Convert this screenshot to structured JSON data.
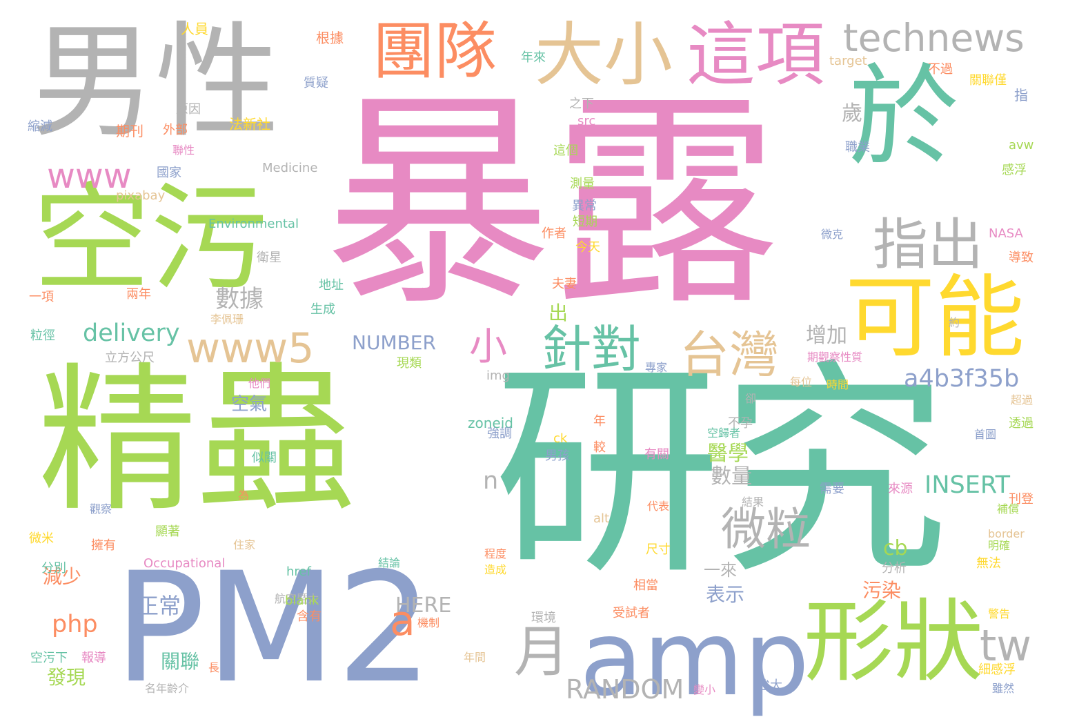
{
  "palette": {
    "teal": "#66c2a5",
    "orange": "#fc8d62",
    "blue": "#8da0cb",
    "pink": "#e78ac3",
    "lime": "#a6d854",
    "yellow": "#ffd92f",
    "tan": "#e5c494",
    "gray": "#b3b3b3"
  },
  "words": [
    {
      "text": "暴露",
      "color": "#e78ac3"
    },
    {
      "text": "研究",
      "color": "#66c2a5"
    },
    {
      "text": "精蟲",
      "color": "#a6d854"
    },
    {
      "text": "PM2",
      "color": "#8da0cb"
    },
    {
      "text": "男性",
      "color": "#b3b3b3"
    },
    {
      "text": "於",
      "color": "#66c2a5"
    },
    {
      "text": "空污",
      "color": "#a6d854"
    },
    {
      "text": "amp",
      "color": "#8da0cb"
    },
    {
      "text": "形狀",
      "color": "#a6d854"
    },
    {
      "text": "可能",
      "color": "#ffd92f"
    },
    {
      "text": "大小",
      "color": "#e5c494"
    },
    {
      "text": "這項",
      "color": "#e78ac3"
    },
    {
      "text": "團隊",
      "color": "#fc8d62"
    },
    {
      "text": "technews",
      "color": "#b3b3b3"
    },
    {
      "text": "指出",
      "color": "#b3b3b3"
    },
    {
      "text": "針對",
      "color": "#66c2a5"
    },
    {
      "text": "台灣",
      "color": "#e5c494"
    },
    {
      "text": "www5",
      "color": "#e5c494"
    },
    {
      "text": "微粒",
      "color": "#b3b3b3"
    },
    {
      "text": "月",
      "color": "#b3b3b3"
    },
    {
      "text": "www",
      "color": "#e78ac3"
    },
    {
      "text": "小",
      "color": "#e78ac3"
    },
    {
      "text": "tw",
      "color": "#b3b3b3"
    },
    {
      "text": "a",
      "color": "#fc8d62"
    },
    {
      "text": "delivery",
      "color": "#66c2a5"
    },
    {
      "text": "數據",
      "color": "#b3b3b3"
    },
    {
      "text": "a4b3f35b",
      "color": "#8da0cb"
    },
    {
      "text": "增加",
      "color": "#b3b3b3"
    },
    {
      "text": "INSERT",
      "color": "#66c2a5"
    },
    {
      "text": "RANDOM",
      "color": "#b3b3b3"
    },
    {
      "text": "NUMBER",
      "color": "#8da0cb"
    },
    {
      "text": "HERE",
      "color": "#b3b3b3"
    },
    {
      "text": "php",
      "color": "#fc8d62"
    },
    {
      "text": "空氣",
      "color": "#8da0cb"
    },
    {
      "text": "醫學",
      "color": "#a6d854"
    },
    {
      "text": "數量",
      "color": "#b3b3b3"
    },
    {
      "text": "cb",
      "color": "#a6d854"
    },
    {
      "text": "正常",
      "color": "#8da0cb"
    },
    {
      "text": "減少",
      "color": "#fc8d62"
    },
    {
      "text": "關聯",
      "color": "#66c2a5"
    },
    {
      "text": "發現",
      "color": "#a6d854"
    },
    {
      "text": "表示",
      "color": "#8da0cb"
    },
    {
      "text": "污染",
      "color": "#fc8d62"
    },
    {
      "text": "n",
      "color": "#b3b3b3"
    },
    {
      "text": "歲",
      "color": "#b3b3b3"
    },
    {
      "text": "出",
      "color": "#a6d854"
    },
    {
      "text": "一來",
      "color": "#b3b3b3"
    },
    {
      "text": "人員",
      "color": "#ffd92f"
    },
    {
      "text": "根據",
      "color": "#fc8d62"
    },
    {
      "text": "質疑",
      "color": "#8da0cb"
    },
    {
      "text": "縮減",
      "color": "#8da0cb"
    },
    {
      "text": "原因",
      "color": "#b3b3b3"
    },
    {
      "text": "期刊",
      "color": "#fc8d62"
    },
    {
      "text": "外部",
      "color": "#fc8d62"
    },
    {
      "text": "法新社",
      "color": "#ffd92f"
    },
    {
      "text": "聯性",
      "color": "#e78ac3"
    },
    {
      "text": "國家",
      "color": "#8da0cb"
    },
    {
      "text": "Medicine",
      "color": "#b3b3b3"
    },
    {
      "text": "pixabay",
      "color": "#e5c494"
    },
    {
      "text": "Environmental",
      "color": "#66c2a5"
    },
    {
      "text": "衛星",
      "color": "#b3b3b3"
    },
    {
      "text": "一項",
      "color": "#fc8d62"
    },
    {
      "text": "兩年",
      "color": "#fc8d62"
    },
    {
      "text": "地址",
      "color": "#66c2a5"
    },
    {
      "text": "生成",
      "color": "#66c2a5"
    },
    {
      "text": "李佩珊",
      "color": "#e5c494"
    },
    {
      "text": "粒徑",
      "color": "#66c2a5"
    },
    {
      "text": "立方公尺",
      "color": "#b3b3b3"
    },
    {
      "text": "年來",
      "color": "#66c2a5"
    },
    {
      "text": "target",
      "color": "#e5c494"
    },
    {
      "text": "不過",
      "color": "#fc8d62"
    },
    {
      "text": "關聯僅",
      "color": "#ffd92f"
    },
    {
      "text": "之下",
      "color": "#b3b3b3"
    },
    {
      "text": "src",
      "color": "#e78ac3"
    },
    {
      "text": "這個",
      "color": "#a6d854"
    },
    {
      "text": "測量",
      "color": "#a6d854"
    },
    {
      "text": "異常",
      "color": "#8da0cb"
    },
    {
      "text": "短期",
      "color": "#a6d854"
    },
    {
      "text": "作者",
      "color": "#fc8d62"
    },
    {
      "text": "今天",
      "color": "#ffd92f"
    },
    {
      "text": "夫妻",
      "color": "#fc8d62"
    },
    {
      "text": "指",
      "color": "#8da0cb"
    },
    {
      "text": "職業",
      "color": "#8da0cb"
    },
    {
      "text": "avw",
      "color": "#a6d854"
    },
    {
      "text": "感浮",
      "color": "#a6d854"
    },
    {
      "text": "NASA",
      "color": "#e78ac3"
    },
    {
      "text": "導致",
      "color": "#fc8d62"
    },
    {
      "text": "微克",
      "color": "#8da0cb"
    },
    {
      "text": "約",
      "color": "#b3b3b3"
    },
    {
      "text": "期觀察性質",
      "color": "#e78ac3"
    },
    {
      "text": "專家",
      "color": "#8da0cb"
    },
    {
      "text": "每位",
      "color": "#e5c494"
    },
    {
      "text": "時間",
      "color": "#ffd92f"
    },
    {
      "text": "超過",
      "color": "#e5c494"
    },
    {
      "text": "透過",
      "color": "#a6d854"
    },
    {
      "text": "首圖",
      "color": "#8da0cb"
    },
    {
      "text": "img",
      "color": "#b3b3b3"
    },
    {
      "text": "卻",
      "color": "#b3b3b3"
    },
    {
      "text": "zoneid",
      "color": "#66c2a5"
    },
    {
      "text": "強調",
      "color": "#8da0cb"
    },
    {
      "text": "不孕",
      "color": "#b3b3b3"
    },
    {
      "text": "空污下",
      "color": "#66c2a5"
    },
    {
      "text": "他們",
      "color": "#e78ac3"
    },
    {
      "text": "現類",
      "color": "#a6d854"
    },
    {
      "text": "年",
      "color": "#fc8d62"
    },
    {
      "text": "ck",
      "color": "#ffd92f"
    },
    {
      "text": "男孩",
      "color": "#8da0cb"
    },
    {
      "text": "較",
      "color": "#fc8d62"
    },
    {
      "text": "有關",
      "color": "#e78ac3"
    },
    {
      "text": "空歸者",
      "color": "#66c2a5"
    },
    {
      "text": "似關",
      "color": "#66c2a5"
    },
    {
      "text": "為",
      "color": "#fc8d62"
    },
    {
      "text": "觀察",
      "color": "#8da0cb"
    },
    {
      "text": "需要",
      "color": "#8da0cb"
    },
    {
      "text": "來源",
      "color": "#e78ac3"
    },
    {
      "text": "刊登",
      "color": "#fc8d62"
    },
    {
      "text": "結果",
      "color": "#b3b3b3"
    },
    {
      "text": "補償",
      "color": "#a6d854"
    },
    {
      "text": "alt",
      "color": "#e5c494"
    },
    {
      "text": "代表",
      "color": "#fc8d62"
    },
    {
      "text": "住家",
      "color": "#e5c494"
    },
    {
      "text": "顯著",
      "color": "#a6d854"
    },
    {
      "text": "微米",
      "color": "#ffd92f"
    },
    {
      "text": "擁有",
      "color": "#fc8d62"
    },
    {
      "text": "明確",
      "color": "#a6d854"
    },
    {
      "text": "border",
      "color": "#e5c494"
    },
    {
      "text": "尺寸",
      "color": "#ffd92f"
    },
    {
      "text": "程度",
      "color": "#fc8d62"
    },
    {
      "text": "造成",
      "color": "#ffd92f"
    },
    {
      "text": "分析",
      "color": "#b3b3b3"
    },
    {
      "text": "無法",
      "color": "#ffd92f"
    },
    {
      "text": "分別",
      "color": "#66c2a5"
    },
    {
      "text": "Occupational",
      "color": "#e78ac3"
    },
    {
      "text": "結論",
      "color": "#66c2a5"
    },
    {
      "text": "href",
      "color": "#66c2a5"
    },
    {
      "text": "相當",
      "color": "#fc8d62"
    },
    {
      "text": "航空暨太",
      "color": "#b3b3b3"
    },
    {
      "text": "blank",
      "color": "#a6d854"
    },
    {
      "text": "含有",
      "color": "#fc8d62"
    },
    {
      "text": "受試者",
      "color": "#fc8d62"
    },
    {
      "text": "警告",
      "color": "#ffd92f"
    },
    {
      "text": "環境",
      "color": "#b3b3b3"
    },
    {
      "text": "機制",
      "color": "#fc8d62"
    },
    {
      "text": "報導",
      "color": "#e78ac3"
    },
    {
      "text": "年間",
      "color": "#e5c494"
    },
    {
      "text": "細感浮",
      "color": "#ffd92f"
    },
    {
      "text": "長",
      "color": "#fc8d62"
    },
    {
      "text": "名年齡介",
      "color": "#b3b3b3"
    },
    {
      "text": "變小",
      "color": "#e78ac3"
    },
    {
      "text": "強大",
      "color": "#8da0cb"
    },
    {
      "text": "雖然",
      "color": "#8da0cb"
    }
  ]
}
